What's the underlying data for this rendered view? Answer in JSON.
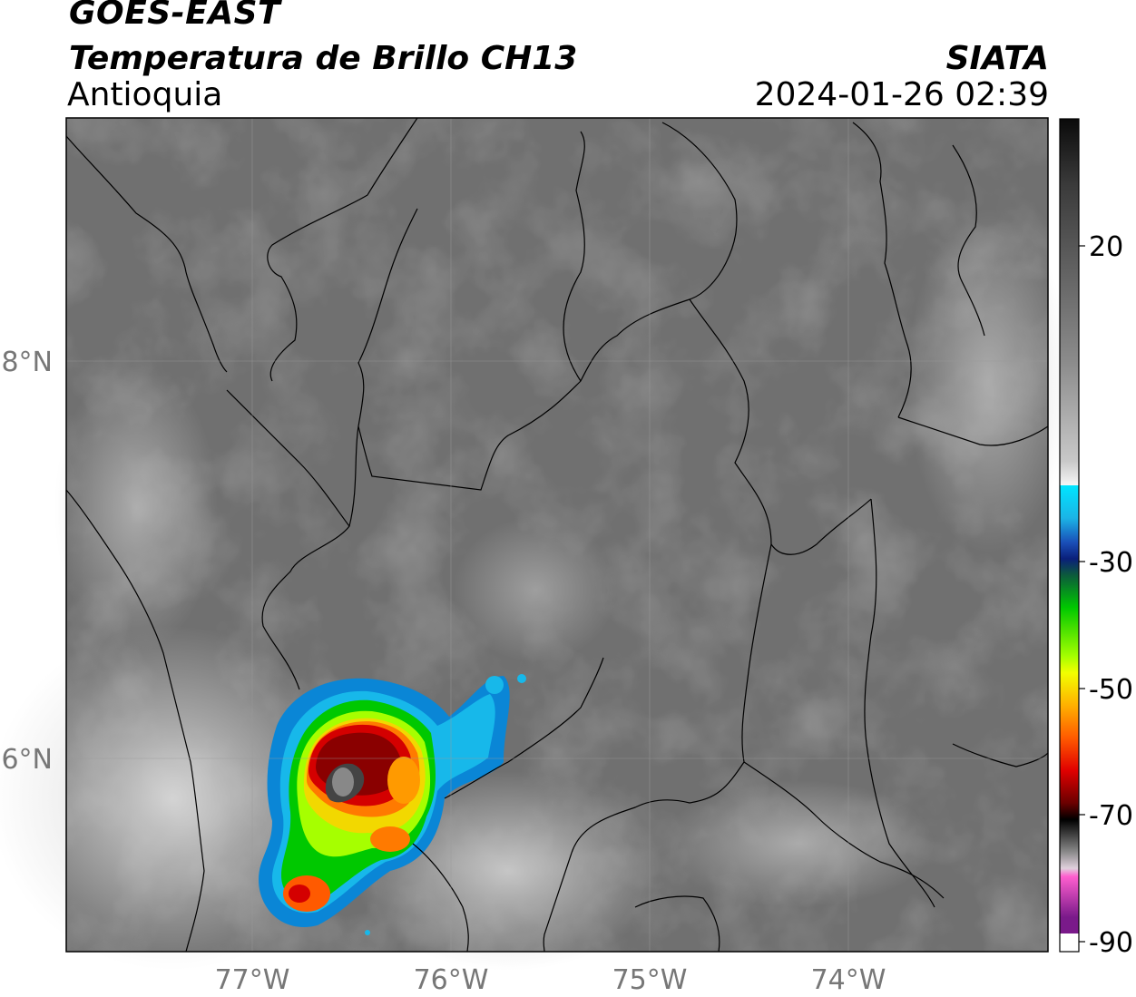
{
  "header": {
    "satellite": "GOES-EAST",
    "product": "Temperatura de Brillo CH13",
    "region": "Antioquia",
    "organization": "SIATA",
    "datetime": "2024-01-26 02:39"
  },
  "map": {
    "lon_range": [
      -77.95,
      -72.98
    ],
    "lat_range": [
      4.97,
      9.17
    ],
    "lon_ticks": [
      {
        "value": -77,
        "label": "77°W"
      },
      {
        "value": -76,
        "label": "76°W"
      },
      {
        "value": -75,
        "label": "75°W"
      },
      {
        "value": -74,
        "label": "74°W"
      }
    ],
    "lat_ticks": [
      {
        "value": 8,
        "label": "8°N"
      },
      {
        "value": 6,
        "label": "6°N"
      }
    ],
    "grid": true
  },
  "colorbar": {
    "range": [
      -90,
      40
    ],
    "ticks": [
      {
        "value": 20,
        "label": "20"
      },
      {
        "value": -30,
        "label": "-30"
      },
      {
        "value": -50,
        "label": "-50"
      },
      {
        "value": -70,
        "label": "-70"
      },
      {
        "value": -90,
        "label": "-90"
      }
    ],
    "colors": {
      "warm_top": "#111111",
      "gray_mid": "#8a8a8a",
      "white": "#f4f4f4",
      "cyan": "#00e5ff",
      "blue_dark": "#102a9a",
      "green": "#00c800",
      "yellow": "#f2ff00",
      "orange": "#ff8c00",
      "red": "#e00000",
      "dark_red": "#4a0000",
      "black": "#000000",
      "pink": "#ff5fcf",
      "purple": "#7a1a8a"
    }
  }
}
